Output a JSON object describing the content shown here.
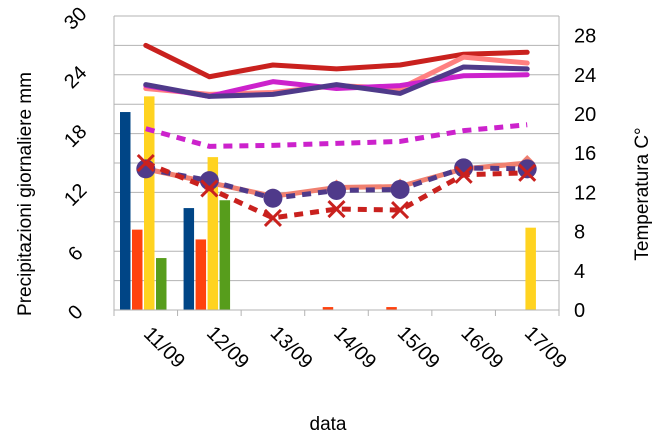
{
  "chart_data": {
    "type": "bar+line",
    "categories": [
      "11/09",
      "12/09",
      "13/09",
      "14/09",
      "15/09",
      "16/09",
      "17/09"
    ],
    "xlabel": "data",
    "ylabel_left": "Precipitazioni giornaliere mm",
    "ylabel_right": "Temperatura C°",
    "ylim_left": [
      0,
      30
    ],
    "yticks_left": [
      "0",
      "6",
      "12",
      "18",
      "24",
      "30"
    ],
    "ylim_right": [
      0,
      30
    ],
    "yticks_right": [
      "0",
      "4",
      "8",
      "12",
      "16",
      "20",
      "24",
      "28"
    ],
    "grid": "horizontal",
    "bar_series": [
      {
        "color": "#004586",
        "values": [
          20.2,
          10.4,
          0,
          0,
          0,
          0,
          0
        ]
      },
      {
        "color": "#ff420e",
        "values": [
          8.2,
          7.2,
          0,
          0.3,
          0.3,
          0,
          0
        ]
      },
      {
        "color": "#ffd320",
        "values": [
          21.8,
          15.6,
          0,
          0,
          0,
          0,
          8.4
        ]
      },
      {
        "color": "#579d1c",
        "values": [
          5.3,
          11.2,
          0,
          0,
          0,
          0,
          0
        ]
      }
    ],
    "line_series": [
      {
        "color": "#c9211e",
        "style": "solid",
        "marker": "none",
        "values": [
          27.0,
          23.8,
          25.0,
          24.6,
          25.0,
          26.1,
          26.3
        ]
      },
      {
        "color": "#ff8080",
        "style": "solid",
        "marker": "none",
        "values": [
          22.6,
          22.0,
          22.2,
          22.9,
          22.6,
          25.8,
          25.2
        ]
      },
      {
        "color": "#cc22cc",
        "style": "solid",
        "marker": "none",
        "values": [
          22.9,
          21.8,
          23.3,
          22.6,
          22.9,
          23.9,
          24.0
        ]
      },
      {
        "color": "#4f3a8a",
        "style": "solid",
        "marker": "none",
        "values": [
          23.0,
          21.8,
          22.0,
          23.0,
          22.1,
          24.8,
          24.6
        ]
      },
      {
        "color": "#cc22cc",
        "style": "dashed",
        "marker": "none",
        "values": [
          18.5,
          16.7,
          16.8,
          17.0,
          17.2,
          18.3,
          18.9
        ]
      },
      {
        "color": "#f08070",
        "style": "solid",
        "marker": "diamond",
        "values": [
          14.4,
          13.0,
          11.6,
          12.5,
          12.6,
          14.4,
          15.0
        ]
      },
      {
        "color": "#4f3a8a",
        "style": "dashed",
        "marker": "circle",
        "values": [
          14.4,
          13.2,
          11.4,
          12.2,
          12.3,
          14.5,
          14.4
        ]
      },
      {
        "color": "#c9211e",
        "style": "dashed",
        "marker": "x",
        "values": [
          15.0,
          12.4,
          9.4,
          10.3,
          10.2,
          13.8,
          14.0
        ]
      }
    ]
  }
}
